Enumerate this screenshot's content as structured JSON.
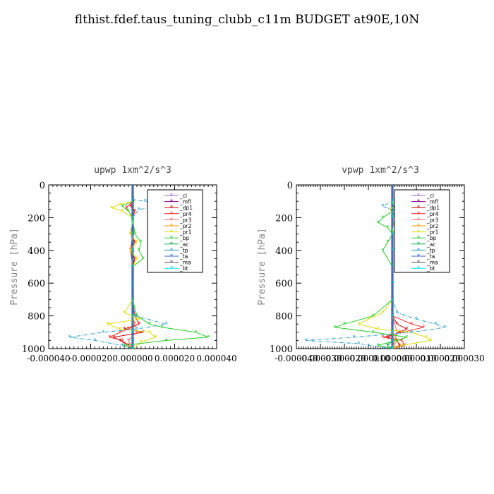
{
  "title": "flthist.fdef.taus_tuning_clubb_c11m  BUDGET at90E,10N",
  "chart_data": [
    {
      "type": "line",
      "title": "upwp  1xm^2/s^3",
      "xlabel": "",
      "ylabel": "Pressure [hPa]",
      "xlim": [
        -4e-05,
        4e-05
      ],
      "ylim": [
        1000,
        0
      ],
      "x_ticks": [
        "-0.000040",
        "-0.000020",
        "0.000000",
        "0.000020",
        "0.000040"
      ],
      "y_ticks": [
        "0",
        "200",
        "400",
        "600",
        "800",
        "1000"
      ],
      "legend_position": "top-right",
      "series": [
        {
          "name": "_cl",
          "color": "#9966cc",
          "y": [
            0,
            100,
            200,
            300,
            400,
            500,
            600,
            700,
            800,
            850,
            900,
            950,
            1000
          ],
          "x": [
            0,
            0,
            0,
            0,
            0,
            0,
            0,
            0,
            0,
            0,
            0,
            0,
            0
          ]
        },
        {
          "name": "_mfl",
          "color": "#880088",
          "y": [
            0,
            100,
            200,
            300,
            400,
            500,
            600,
            700,
            800,
            850,
            900,
            950,
            1000
          ],
          "x": [
            0,
            0,
            0,
            0,
            0,
            0,
            0,
            0,
            0,
            0,
            0,
            0,
            0
          ]
        },
        {
          "name": "_dp1",
          "color": "#cc0000",
          "y": [
            0,
            100,
            130,
            160,
            200,
            300,
            350,
            400,
            450,
            500,
            600,
            700,
            800,
            850,
            880,
            900,
            930,
            950,
            980,
            1000
          ],
          "x": [
            0,
            5e-07,
            -1e-06,
            1e-06,
            0,
            -1e-06,
            1e-06,
            -1e-06,
            1e-06,
            0,
            0,
            0,
            1e-06,
            3e-06,
            -4e-06,
            5e-06,
            -9e-06,
            -6e-06,
            -2e-06,
            0
          ]
        },
        {
          "name": "_pr4",
          "color": "#ff2222",
          "y": [
            0,
            100,
            140,
            200,
            300,
            400,
            500,
            600,
            700,
            800,
            850,
            880,
            900,
            930,
            950,
            980,
            1000
          ],
          "x": [
            0,
            0,
            -3e-06,
            0,
            0,
            -1e-06,
            0,
            0,
            0,
            1e-06,
            3e-06,
            -2e-06,
            -6e-06,
            -1.1e-05,
            -5e-06,
            -2e-06,
            0
          ]
        },
        {
          "name": "_pr3",
          "color": "#ff6666",
          "y": [
            0,
            100,
            200,
            400,
            600,
            800,
            850,
            900,
            950,
            1000
          ],
          "x": [
            0,
            0,
            0,
            0,
            0,
            0,
            1e-06,
            2e-06,
            -2e-06,
            0
          ]
        },
        {
          "name": "_pr2",
          "color": "#ff9900",
          "y": [
            0,
            100,
            200,
            400,
            600,
            800,
            850,
            900,
            950,
            1000
          ],
          "x": [
            0,
            0,
            0,
            0,
            0,
            0,
            0,
            0,
            0,
            0
          ]
        },
        {
          "name": "_pr1",
          "color": "#dddd00",
          "y": [
            0,
            100,
            120,
            140,
            160,
            200,
            300,
            350,
            400,
            450,
            500,
            600,
            700,
            780,
            820,
            850,
            880,
            900,
            930,
            960,
            1000
          ],
          "x": [
            0,
            0,
            -6e-06,
            -1e-05,
            -5e-06,
            0,
            -1e-06,
            2e-06,
            -1e-06,
            2e-06,
            0,
            0,
            0,
            -4e-06,
            3e-06,
            -1.2e-05,
            -6e-06,
            8e-06,
            1.1e-05,
            4e-06,
            0
          ]
        },
        {
          "name": "_bp",
          "color": "#22cc22",
          "y": [
            0,
            100,
            130,
            160,
            200,
            300,
            350,
            400,
            450,
            500,
            600,
            700,
            800,
            850,
            870,
            900,
            930,
            950,
            980,
            1000
          ],
          "x": [
            0,
            0,
            -5e-06,
            -2e-06,
            0,
            1e-06,
            4e-06,
            3e-06,
            5e-06,
            0,
            0,
            0,
            2e-06,
            8e-06,
            1.4e-05,
            3e-05,
            3.6e-05,
            1.6e-05,
            -4e-06,
            0
          ]
        },
        {
          "name": "_ac",
          "color": "#00aa44",
          "y": [
            0,
            100,
            200,
            400,
            600,
            800,
            900,
            950,
            1000
          ],
          "x": [
            0,
            0,
            0,
            0,
            0,
            0,
            0,
            0,
            0
          ]
        },
        {
          "name": "_tp",
          "color": "#2299cc",
          "y": [
            0,
            90,
            100,
            130,
            150,
            200,
            300,
            400,
            500,
            600,
            700,
            800,
            850,
            880,
            900,
            930,
            950,
            980,
            1000
          ],
          "x": [
            0,
            0,
            6e-06,
            1.4e-05,
            3e-06,
            0,
            0,
            0,
            0,
            0,
            0,
            1e-06,
            1.6e-05,
            2e-06,
            -1.4e-05,
            -3e-05,
            -1.8e-05,
            -5e-06,
            0
          ]
        },
        {
          "name": "_ta",
          "color": "#3366cc",
          "y": [
            0,
            100,
            200,
            400,
            600,
            800,
            900,
            950,
            1000
          ],
          "x": [
            0,
            0,
            0,
            0,
            0,
            0,
            0,
            0,
            0
          ]
        },
        {
          "name": "_ma",
          "color": "#555555",
          "y": [
            0,
            100,
            200,
            400,
            600,
            800,
            900,
            950,
            1000
          ],
          "x": [
            0,
            0,
            0,
            0,
            0,
            0,
            0,
            0,
            0
          ]
        },
        {
          "name": "_bt",
          "color": "#00dddd",
          "y": [
            0,
            100,
            200,
            400,
            600,
            800,
            900,
            950,
            1000
          ],
          "x": [
            0,
            0,
            0,
            0,
            0,
            0,
            0,
            0,
            0
          ]
        }
      ]
    },
    {
      "type": "line",
      "title": "vpwp  1xm^2/s^3",
      "xlabel": "",
      "ylabel": "Pressure [hPa]",
      "xlim": [
        -4e-05,
        3e-05
      ],
      "ylim": [
        1000,
        0
      ],
      "x_ticks": [
        "-0.000040",
        "-0.000030",
        "-0.000020",
        "-0.000010",
        "0.000000",
        "0.000010",
        "0.000020",
        "0.000030"
      ],
      "y_ticks": [
        "0",
        "200",
        "400",
        "600",
        "800",
        "1000"
      ],
      "legend_position": "top-right",
      "series": [
        {
          "name": "_cl",
          "color": "#9966cc",
          "y": [
            0,
            100,
            200,
            300,
            400,
            500,
            600,
            700,
            800,
            850,
            900,
            950,
            1000
          ],
          "x": [
            0,
            0,
            0,
            0,
            0,
            0,
            0,
            0,
            0,
            0,
            0,
            0,
            0
          ]
        },
        {
          "name": "_mfl",
          "color": "#880088",
          "y": [
            0,
            100,
            200,
            300,
            400,
            500,
            600,
            700,
            800,
            850,
            900,
            950,
            1000
          ],
          "x": [
            0,
            0,
            0,
            0,
            0,
            0,
            0,
            0,
            0,
            0,
            0,
            0,
            0
          ]
        },
        {
          "name": "_dp1",
          "color": "#cc0000",
          "y": [
            0,
            100,
            200,
            300,
            400,
            500,
            600,
            700,
            800,
            850,
            880,
            900,
            930,
            950,
            980,
            1000
          ],
          "x": [
            0,
            0,
            0,
            0,
            0,
            0,
            0,
            0,
            0,
            2e-06,
            6e-06,
            3e-06,
            -2e-06,
            2e-06,
            3e-06,
            0
          ]
        },
        {
          "name": "_pr4",
          "color": "#ff2222",
          "y": [
            0,
            100,
            200,
            300,
            400,
            500,
            600,
            700,
            800,
            850,
            870,
            900,
            930,
            950,
            980,
            1000
          ],
          "x": [
            0,
            0,
            0,
            0,
            0,
            0,
            0,
            0,
            0,
            8e-06,
            1.3e-05,
            4e-06,
            -4e-06,
            4e-06,
            5e-06,
            0
          ]
        },
        {
          "name": "_pr3",
          "color": "#ff6666",
          "y": [
            0,
            100,
            200,
            400,
            600,
            800,
            900,
            950,
            1000
          ],
          "x": [
            0,
            0,
            0,
            0,
            0,
            0,
            2e-06,
            1e-06,
            0
          ]
        },
        {
          "name": "_pr2",
          "color": "#ff9900",
          "y": [
            0,
            100,
            200,
            400,
            600,
            800,
            900,
            950,
            1000
          ],
          "x": [
            0,
            0,
            0,
            0,
            0,
            0,
            0,
            2e-06,
            0
          ]
        },
        {
          "name": "_pr1",
          "color": "#dddd00",
          "y": [
            0,
            100,
            120,
            150,
            200,
            300,
            400,
            500,
            600,
            700,
            780,
            820,
            850,
            880,
            900,
            930,
            950,
            980,
            1000
          ],
          "x": [
            0,
            0,
            2e-06,
            -1e-06,
            1e-06,
            0,
            0,
            0,
            0,
            0,
            -4e-06,
            -1e-05,
            -1.4e-05,
            -6e-06,
            8e-06,
            1.4e-05,
            1.6e-05,
            4e-06,
            0
          ]
        },
        {
          "name": "_bp",
          "color": "#22cc22",
          "y": [
            0,
            100,
            150,
            200,
            230,
            260,
            300,
            350,
            400,
            500,
            600,
            700,
            800,
            850,
            870,
            900,
            930,
            950,
            980,
            1000
          ],
          "x": [
            0,
            0,
            1e-06,
            -4e-06,
            -6e-06,
            -2e-06,
            0,
            -2e-06,
            -4e-06,
            0,
            0,
            0,
            -8e-06,
            -2e-05,
            -2.4e-05,
            -8e-06,
            6e-06,
            2e-06,
            -6e-06,
            0
          ]
        },
        {
          "name": "_ac",
          "color": "#00aa44",
          "y": [
            0,
            100,
            200,
            400,
            600,
            800,
            900,
            950,
            980,
            1000
          ],
          "x": [
            0,
            0,
            0,
            0,
            0,
            0,
            0,
            0,
            -2e-06,
            0
          ]
        },
        {
          "name": "_tp",
          "color": "#2299cc",
          "y": [
            0,
            100,
            130,
            160,
            200,
            300,
            400,
            500,
            600,
            700,
            780,
            820,
            850,
            870,
            900,
            930,
            950,
            970,
            1000
          ],
          "x": [
            0,
            0,
            -4e-06,
            1e-06,
            0,
            0,
            0,
            0,
            0,
            0,
            2e-06,
            1e-05,
            1.8e-05,
            2.2e-05,
            8e-06,
            -1.6e-05,
            -3.6e-05,
            -1.4e-05,
            0
          ]
        },
        {
          "name": "_ta",
          "color": "#3366cc",
          "y": [
            0,
            100,
            200,
            400,
            600,
            800,
            900,
            950,
            1000
          ],
          "x": [
            0,
            0,
            0,
            0,
            0,
            0,
            0,
            0,
            0
          ]
        },
        {
          "name": "_ma",
          "color": "#555555",
          "y": [
            0,
            100,
            200,
            400,
            600,
            800,
            900,
            950,
            1000
          ],
          "x": [
            0,
            0,
            0,
            0,
            0,
            0,
            0,
            0,
            0
          ]
        },
        {
          "name": "_bt",
          "color": "#00dddd",
          "y": [
            0,
            100,
            200,
            400,
            600,
            800,
            900,
            950,
            1000
          ],
          "x": [
            0,
            0,
            0,
            0,
            0,
            0,
            0,
            0,
            0
          ]
        }
      ]
    }
  ]
}
